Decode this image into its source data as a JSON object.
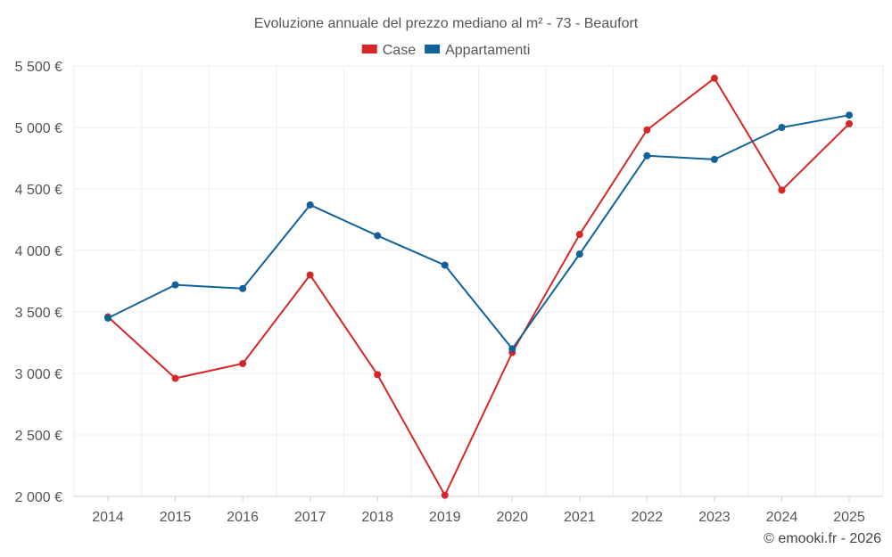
{
  "chart_data": {
    "type": "line",
    "title": "Evoluzione annuale del prezzo mediano al m² - 73 - Beaufort",
    "xlabel": "",
    "ylabel": "",
    "categories": [
      "2014",
      "2015",
      "2016",
      "2017",
      "2018",
      "2019",
      "2020",
      "2021",
      "2022",
      "2023",
      "2024",
      "2025"
    ],
    "ylim": [
      2000,
      5500
    ],
    "yticks": [
      2000,
      2500,
      3000,
      3500,
      4000,
      4500,
      5000,
      5500
    ],
    "ytick_labels": [
      "2 000 €",
      "2 500 €",
      "3 000 €",
      "3 500 €",
      "4 000 €",
      "4 500 €",
      "5 000 €",
      "5 500 €"
    ],
    "grid": true,
    "legend_position": "top-center",
    "series": [
      {
        "name": "Case",
        "color": "#d62728",
        "values": [
          3460,
          2960,
          3080,
          3800,
          2990,
          2010,
          3170,
          4130,
          4980,
          5400,
          4490,
          5030
        ]
      },
      {
        "name": "Appartamenti",
        "color": "#0f6399",
        "values": [
          3450,
          3720,
          3690,
          4370,
          4120,
          3880,
          3200,
          3970,
          4770,
          4740,
          5000,
          5100
        ]
      }
    ]
  },
  "credit": "© emooki.fr - 2026"
}
